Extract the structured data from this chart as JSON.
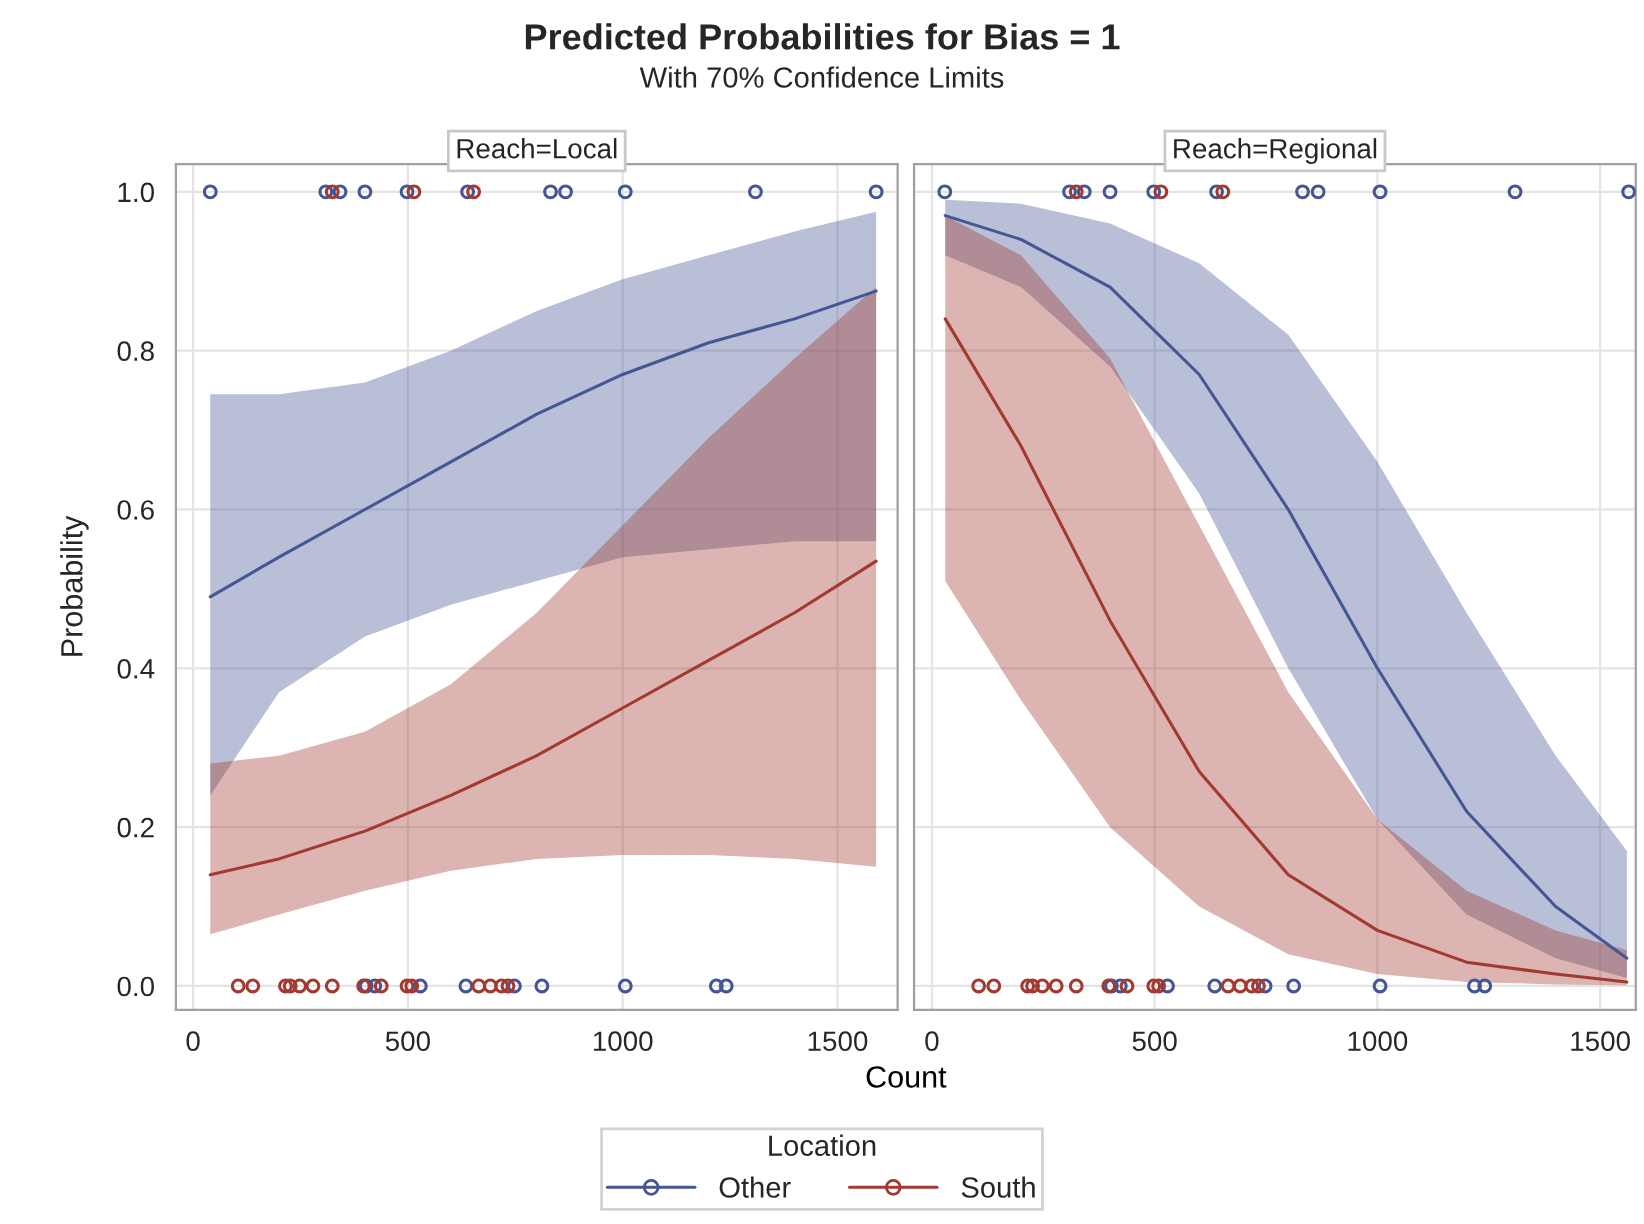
{
  "chart_data": [
    {
      "type": "line",
      "title": "Predicted Probabilities for Bias = 1",
      "subtitle": "With 70% Confidence Limits",
      "annotations": [
        "Reach=Local"
      ],
      "xlabel": "Count",
      "ylabel": "Probability",
      "legend_title": "Location",
      "legend": "bottom",
      "grid": true,
      "xlim": [
        -40,
        1640
      ],
      "xticks": [
        0,
        500,
        1000,
        1500
      ],
      "ylim": [
        -0.03,
        1.035
      ],
      "yticks": [
        {
          "value": 0,
          "label": "0.0"
        },
        {
          "value": 0.2,
          "label": "0.2"
        },
        {
          "value": 0.4,
          "label": "0.4"
        },
        {
          "value": 0.6,
          "label": "0.6"
        },
        {
          "value": 0.8,
          "label": "0.8"
        },
        {
          "value": 1,
          "label": "1.0"
        }
      ],
      "series": [
        {
          "name": "Other",
          "color": "#445694",
          "x": [
            40,
            200,
            400,
            600,
            800,
            1000,
            1200,
            1400,
            1590
          ],
          "values": [
            0.49,
            0.54,
            0.6,
            0.66,
            0.72,
            0.77,
            0.81,
            0.84,
            0.875
          ],
          "lower": [
            0.24,
            0.37,
            0.44,
            0.48,
            0.51,
            0.54,
            0.55,
            0.56,
            0.56
          ],
          "upper": [
            0.745,
            0.745,
            0.76,
            0.8,
            0.85,
            0.89,
            0.92,
            0.95,
            0.975
          ]
        },
        {
          "name": "South",
          "color": "#a23a32",
          "x": [
            40,
            200,
            400,
            600,
            800,
            1000,
            1200,
            1400,
            1590
          ],
          "values": [
            0.14,
            0.16,
            0.195,
            0.24,
            0.29,
            0.35,
            0.41,
            0.47,
            0.535
          ],
          "lower": [
            0.065,
            0.09,
            0.12,
            0.145,
            0.16,
            0.165,
            0.165,
            0.16,
            0.15
          ],
          "upper": [
            0.28,
            0.29,
            0.32,
            0.38,
            0.47,
            0.58,
            0.69,
            0.79,
            0.88
          ]
        },
        {
          "type": "scatter",
          "color": "#445694",
          "marker": "circle",
          "x": [
            40,
            309,
            342,
            400,
            498,
            639,
            832,
            867,
            1006,
            1309,
            1590,
            403,
            423,
            529,
            635,
            748,
            812,
            1006,
            1218,
            1241
          ],
          "values": [
            1,
            1,
            1,
            1,
            1,
            1,
            1,
            1,
            1,
            1,
            1,
            0,
            0,
            0,
            0,
            0,
            0,
            0,
            0,
            0
          ]
        },
        {
          "type": "scatter",
          "color": "#a23a32",
          "marker": "circle",
          "x": [
            324,
            514,
            653,
            105,
            139,
            215,
            226,
            248,
            279,
            324,
            397,
            438,
            498,
            509,
            665,
            692,
            718,
            733
          ],
          "values": [
            1,
            1,
            1,
            0,
            0,
            0,
            0,
            0,
            0,
            0,
            0,
            0,
            0,
            0,
            0,
            0,
            0,
            0
          ]
        }
      ]
    },
    {
      "type": "line",
      "annotations": [
        "Reach=Regional"
      ],
      "grid": true,
      "tick_labels": "x",
      "xlim": [
        -40,
        1580
      ],
      "xticks": [
        0,
        500,
        1000,
        1500
      ],
      "ylim": [
        -0.03,
        1.035
      ],
      "yticks": [
        {
          "value": 0,
          "label": null
        },
        {
          "value": 0.2,
          "label": null
        },
        {
          "value": 0.4,
          "label": null
        },
        {
          "value": 0.6,
          "label": null
        },
        {
          "value": 0.8,
          "label": null
        },
        {
          "value": 1,
          "label": null
        }
      ],
      "series": [
        {
          "name": "Other",
          "color": "#445694",
          "x": [
            30,
            200,
            400,
            600,
            800,
            1000,
            1200,
            1400,
            1560
          ],
          "values": [
            0.97,
            0.94,
            0.88,
            0.77,
            0.6,
            0.4,
            0.22,
            0.1,
            0.035
          ],
          "lower": [
            0.92,
            0.88,
            0.78,
            0.62,
            0.4,
            0.21,
            0.09,
            0.035,
            0.01
          ],
          "upper": [
            0.99,
            0.985,
            0.96,
            0.91,
            0.82,
            0.66,
            0.47,
            0.29,
            0.17
          ]
        },
        {
          "name": "South",
          "color": "#a23a32",
          "x": [
            30,
            200,
            400,
            600,
            800,
            1000,
            1200,
            1400,
            1560
          ],
          "values": [
            0.84,
            0.68,
            0.46,
            0.27,
            0.14,
            0.07,
            0.03,
            0.015,
            0.005
          ],
          "lower": [
            0.51,
            0.36,
            0.2,
            0.1,
            0.04,
            0.015,
            0.005,
            0.002,
            0.001
          ],
          "upper": [
            0.97,
            0.92,
            0.79,
            0.58,
            0.37,
            0.21,
            0.12,
            0.07,
            0.045
          ]
        },
        {
          "type": "scatter",
          "color": "#445694",
          "x": [
            29,
            309,
            342,
            400,
            498,
            639,
            832,
            867,
            1006,
            1309,
            1564,
            403,
            423,
            529,
            635,
            748,
            812,
            1006,
            1218,
            1241
          ],
          "values": [
            1,
            1,
            1,
            1,
            1,
            1,
            1,
            1,
            1,
            1,
            1,
            0,
            0,
            0,
            0,
            0,
            0,
            0,
            0,
            0
          ]
        },
        {
          "type": "scatter",
          "color": "#a23a32",
          "x": [
            324,
            514,
            653,
            105,
            139,
            215,
            226,
            248,
            279,
            324,
            397,
            438,
            498,
            509,
            665,
            692,
            718,
            733
          ],
          "values": [
            1,
            1,
            1,
            0,
            0,
            0,
            0,
            0,
            0,
            0,
            0,
            0,
            0,
            0,
            0,
            0,
            0,
            0
          ]
        }
      ]
    }
  ]
}
